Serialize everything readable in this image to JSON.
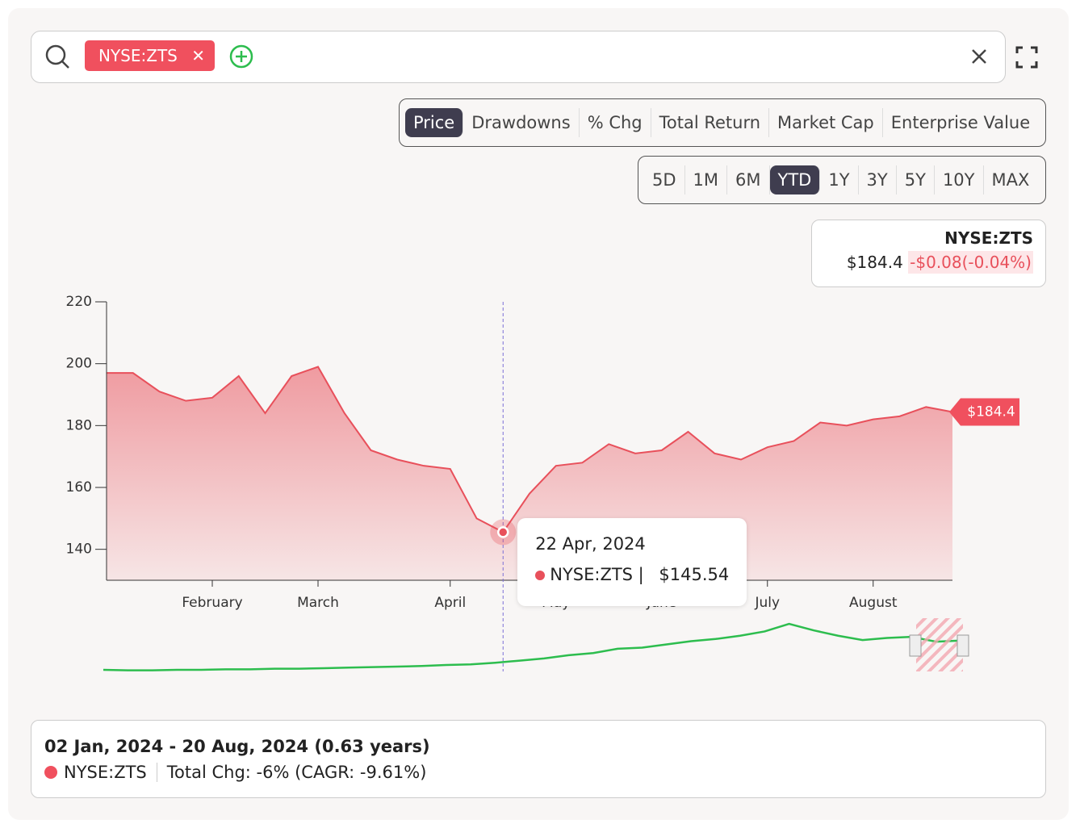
{
  "search": {
    "chip": "NYSE:ZTS"
  },
  "metric_tabs": {
    "items": [
      "Price",
      "Drawdowns",
      "% Chg",
      "Total Return",
      "Market Cap",
      "Enterprise Value"
    ],
    "active_index": 0
  },
  "range_tabs": {
    "items": [
      "5D",
      "1M",
      "6M",
      "YTD",
      "1Y",
      "3Y",
      "5Y",
      "10Y",
      "MAX"
    ],
    "active_index": 3
  },
  "quote": {
    "symbol": "NYSE:ZTS",
    "price": "$184.4",
    "change": "-$0.08(-0.04%)"
  },
  "tooltip": {
    "date": "22 Apr, 2024",
    "series": "NYSE:ZTS |",
    "value": "$145.54",
    "hover_index": 15
  },
  "summary": {
    "period": "02 Jan, 2024 - 20 Aug, 2024 (0.63 years)",
    "series": "NYSE:ZTS",
    "stats": "Total Chg: -6% (CAGR: -9.61%)"
  },
  "chart_data": [
    {
      "type": "area",
      "categories": [
        null,
        null,
        null,
        null,
        "February",
        null,
        null,
        null,
        "March",
        null,
        null,
        null,
        null,
        "April",
        null,
        null,
        null,
        "May",
        null,
        null,
        null,
        "June",
        null,
        null,
        null,
        "July",
        null,
        null,
        null,
        "August",
        null,
        null,
        null
      ],
      "series": [
        {
          "color": "#e8505b",
          "values": [
            197,
            197,
            191,
            188,
            189,
            196,
            184,
            196,
            199,
            184,
            172,
            169,
            167,
            166,
            150,
            145.54,
            158,
            167,
            168,
            174,
            171,
            172,
            178,
            171,
            169,
            173,
            175,
            181,
            180,
            182,
            183,
            186,
            184.4
          ]
        }
      ],
      "ylim": [
        130,
        220
      ],
      "yticks": [
        140,
        160,
        180,
        200,
        220
      ]
    },
    {
      "type": "line",
      "series": [
        {
          "color": "#2dbd4e",
          "values": [
            3,
            2,
            2,
            3,
            3,
            4,
            4,
            5,
            5,
            6,
            7,
            8,
            9,
            10,
            12,
            13,
            16,
            20,
            24,
            30,
            34,
            42,
            44,
            50,
            56,
            60,
            66,
            74,
            88,
            76,
            66,
            58,
            62,
            64,
            55,
            57
          ]
        }
      ],
      "ylim": [
        0,
        100
      ]
    }
  ]
}
